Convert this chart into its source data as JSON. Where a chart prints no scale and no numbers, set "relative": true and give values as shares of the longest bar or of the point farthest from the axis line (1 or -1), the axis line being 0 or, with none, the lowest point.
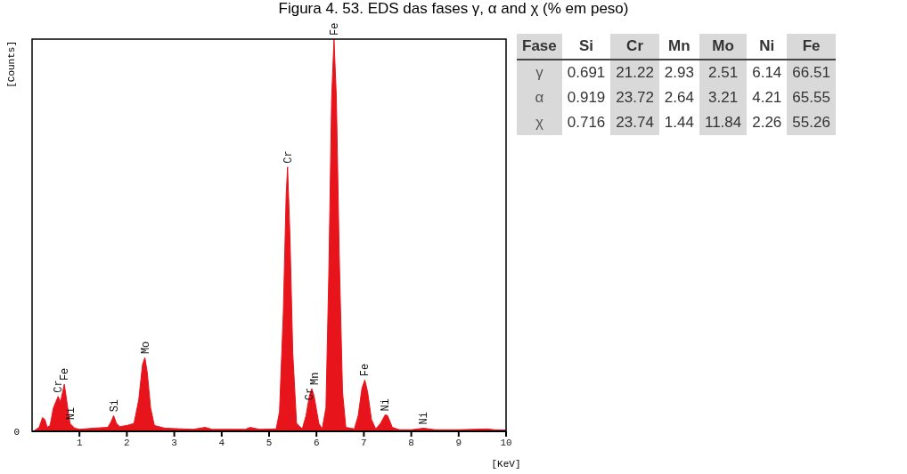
{
  "chart_data": [
    {
      "type": "area",
      "title": "Figura 4. 53. EDS das fases γ, α and χ (% em peso)",
      "xlabel": "[KeV]",
      "ylabel": "[Counts]",
      "relative": true,
      "color": "#e8141c",
      "xlim": [
        0,
        10
      ],
      "xticks": [
        1,
        2,
        3,
        4,
        5,
        6,
        7,
        8,
        9,
        10
      ],
      "x": [
        0.03,
        0.15,
        0.22,
        0.27,
        0.32,
        0.38,
        0.45,
        0.55,
        0.6,
        0.68,
        0.74,
        0.8,
        0.9,
        1.0,
        1.3,
        1.6,
        1.67,
        1.72,
        1.78,
        1.85,
        2.0,
        2.15,
        2.25,
        2.33,
        2.38,
        2.43,
        2.5,
        2.58,
        2.8,
        3.0,
        3.4,
        3.65,
        3.8,
        4.5,
        4.6,
        4.8,
        5.15,
        5.22,
        5.3,
        5.36,
        5.39,
        5.44,
        5.5,
        5.58,
        5.7,
        5.78,
        5.85,
        5.9,
        5.95,
        6.05,
        6.12,
        6.2,
        6.26,
        6.32,
        6.37,
        6.42,
        6.48,
        6.55,
        6.62,
        6.8,
        6.88,
        6.96,
        7.02,
        7.08,
        7.16,
        7.25,
        7.35,
        7.45,
        7.5,
        7.6,
        7.75,
        8.0,
        8.26,
        8.5,
        9.0,
        9.6,
        9.75,
        10
      ],
      "values": [
        0.0,
        0.01,
        0.035,
        0.03,
        0.01,
        0.015,
        0.06,
        0.089,
        0.075,
        0.12,
        0.07,
        0.02,
        0.008,
        0.005,
        0.008,
        0.01,
        0.025,
        0.04,
        0.02,
        0.012,
        0.015,
        0.02,
        0.08,
        0.17,
        0.188,
        0.15,
        0.06,
        0.015,
        0.008,
        0.007,
        0.005,
        0.01,
        0.005,
        0.005,
        0.01,
        0.005,
        0.006,
        0.05,
        0.3,
        0.6,
        0.674,
        0.5,
        0.2,
        0.02,
        0.006,
        0.04,
        0.09,
        0.109,
        0.09,
        0.02,
        0.006,
        0.06,
        0.4,
        0.85,
        1,
        0.85,
        0.45,
        0.1,
        0.01,
        0.006,
        0.04,
        0.11,
        0.131,
        0.1,
        0.03,
        0.006,
        0.02,
        0.042,
        0.04,
        0.01,
        0.004,
        0.004,
        0.008,
        0.004,
        0.004,
        0.006,
        0.004,
        0.003
      ],
      "annotations": [
        "0",
        {
          "text": "Cr",
          "x": 0.55,
          "y": 0.089
        },
        {
          "text": "Fe",
          "x": 0.68,
          "y": 0.12
        },
        {
          "text": "Ni",
          "x": 0.8,
          "y": 0.02
        },
        {
          "text": "Si",
          "x": 1.72,
          "y": 0.04
        },
        {
          "text": "Mo",
          "x": 2.38,
          "y": 0.188
        },
        {
          "text": "Cr",
          "x": 5.39,
          "y": 0.674
        },
        {
          "text": "Cr",
          "x": 5.84,
          "y": 0.07
        },
        {
          "text": "Mn",
          "x": 5.95,
          "y": 0.109
        },
        {
          "text": "Fe",
          "x": 6.37,
          "y": 1
        },
        {
          "text": "Fe",
          "x": 7.02,
          "y": 0.131
        },
        {
          "text": "Ni",
          "x": 7.45,
          "y": 0.042
        },
        {
          "text": "Ni",
          "x": 8.26,
          "y": 0.008
        }
      ]
    },
    {
      "type": "heatmap",
      "ylabel": "Fase",
      "data_labels": true,
      "categories": [
        "Si",
        "Cr",
        "Mn",
        "Mo",
        "Ni",
        "Fe"
      ],
      "y_categories": [
        "γ",
        "α",
        "χ"
      ],
      "cells": [
        [
          0.691,
          21.22,
          2.93,
          2.51,
          6.14,
          66.51
        ],
        [
          0.919,
          23.72,
          2.64,
          3.21,
          4.21,
          65.55
        ],
        [
          0.716,
          23.74,
          1.44,
          11.84,
          2.26,
          55.26
        ]
      ]
    }
  ]
}
